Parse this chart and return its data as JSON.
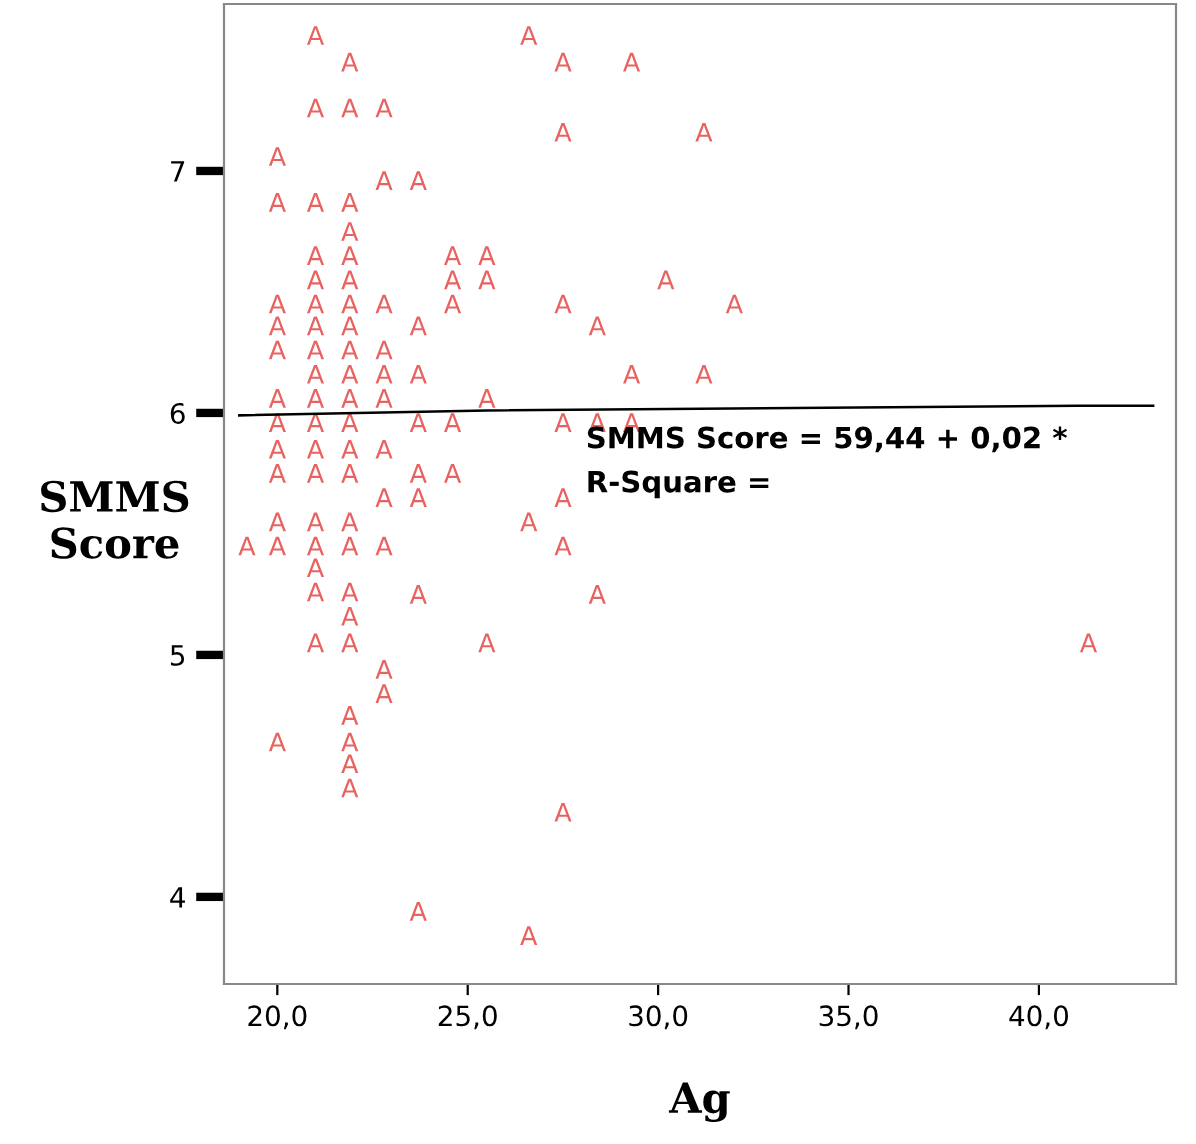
{
  "chart_data": {
    "type": "scatter",
    "xlabel": "Ag",
    "ylabel": "SMMS\nScore",
    "annotations": [
      "SMMS Score = 59,44 + 0,02 *",
      "R-Square ="
    ],
    "xlim": [
      18.6,
      43.6
    ],
    "ylim": [
      3.64,
      7.69
    ],
    "xticks": [
      {
        "value": 20,
        "label": "20,0"
      },
      {
        "value": 25,
        "label": "25,0"
      },
      {
        "value": 30,
        "label": "30,0"
      },
      {
        "value": 35,
        "label": "35,0"
      },
      {
        "value": 40,
        "label": "40,0"
      }
    ],
    "yticks": [
      4,
      5,
      6,
      7
    ],
    "grid": false,
    "series": [
      {
        "color": "#e8625f",
        "x": [
          21.0,
          26.6,
          21.9,
          27.5,
          29.3,
          21.0,
          21.9,
          22.8,
          27.5,
          31.2,
          20.0,
          22.8,
          23.7,
          20.0,
          21.0,
          21.9,
          21.9,
          21.0,
          21.9,
          24.6,
          25.5,
          21.0,
          21.9,
          24.6,
          25.5,
          30.2,
          20.0,
          21.0,
          21.9,
          22.8,
          24.6,
          27.5,
          32.0,
          20.0,
          21.0,
          21.9,
          23.7,
          28.4,
          20.0,
          21.0,
          21.9,
          22.8,
          21.0,
          21.9,
          22.8,
          23.7,
          29.3,
          31.2,
          20.0,
          21.0,
          21.9,
          22.8,
          25.5,
          20.0,
          21.0,
          21.9,
          23.7,
          24.6,
          27.5,
          28.4,
          29.3,
          20.0,
          21.0,
          21.9,
          22.8,
          20.0,
          21.0,
          21.9,
          23.7,
          24.6,
          22.8,
          23.7,
          27.5,
          20.0,
          21.0,
          21.9,
          26.6,
          19.2,
          20.0,
          21.0,
          21.9,
          22.8,
          27.5,
          21.0,
          21.0,
          21.9,
          23.7,
          28.4,
          21.9,
          21.0,
          21.9,
          25.5,
          41.3,
          22.8,
          22.8,
          21.9,
          20.0,
          21.9,
          21.9,
          21.9,
          27.5,
          23.7,
          26.6
        ],
        "values": [
          7.56,
          7.56,
          7.45,
          7.45,
          7.45,
          7.26,
          7.26,
          7.26,
          7.16,
          7.16,
          7.06,
          6.96,
          6.96,
          6.87,
          6.87,
          6.87,
          6.75,
          6.65,
          6.65,
          6.65,
          6.65,
          6.55,
          6.55,
          6.55,
          6.55,
          6.55,
          6.45,
          6.45,
          6.45,
          6.45,
          6.45,
          6.45,
          6.45,
          6.36,
          6.36,
          6.36,
          6.36,
          6.36,
          6.26,
          6.26,
          6.26,
          6.26,
          6.16,
          6.16,
          6.16,
          6.16,
          6.16,
          6.16,
          6.06,
          6.06,
          6.06,
          6.06,
          6.06,
          5.96,
          5.96,
          5.96,
          5.96,
          5.96,
          5.96,
          5.96,
          5.96,
          5.85,
          5.85,
          5.85,
          5.85,
          5.75,
          5.75,
          5.75,
          5.75,
          5.75,
          5.65,
          5.65,
          5.65,
          5.55,
          5.55,
          5.55,
          5.55,
          5.45,
          5.45,
          5.45,
          5.45,
          5.45,
          5.45,
          5.36,
          5.26,
          5.26,
          5.25,
          5.25,
          5.16,
          5.05,
          5.05,
          5.05,
          5.05,
          4.94,
          4.84,
          4.75,
          4.64,
          4.64,
          4.55,
          4.45,
          4.35,
          3.94,
          3.84
        ]
      },
      {
        "type": "line",
        "color": "#000000",
        "x": [
          19.0,
          25.5,
          41.0,
          43.0
        ],
        "values": [
          5.99,
          6.01,
          6.03,
          6.03
        ]
      }
    ]
  }
}
